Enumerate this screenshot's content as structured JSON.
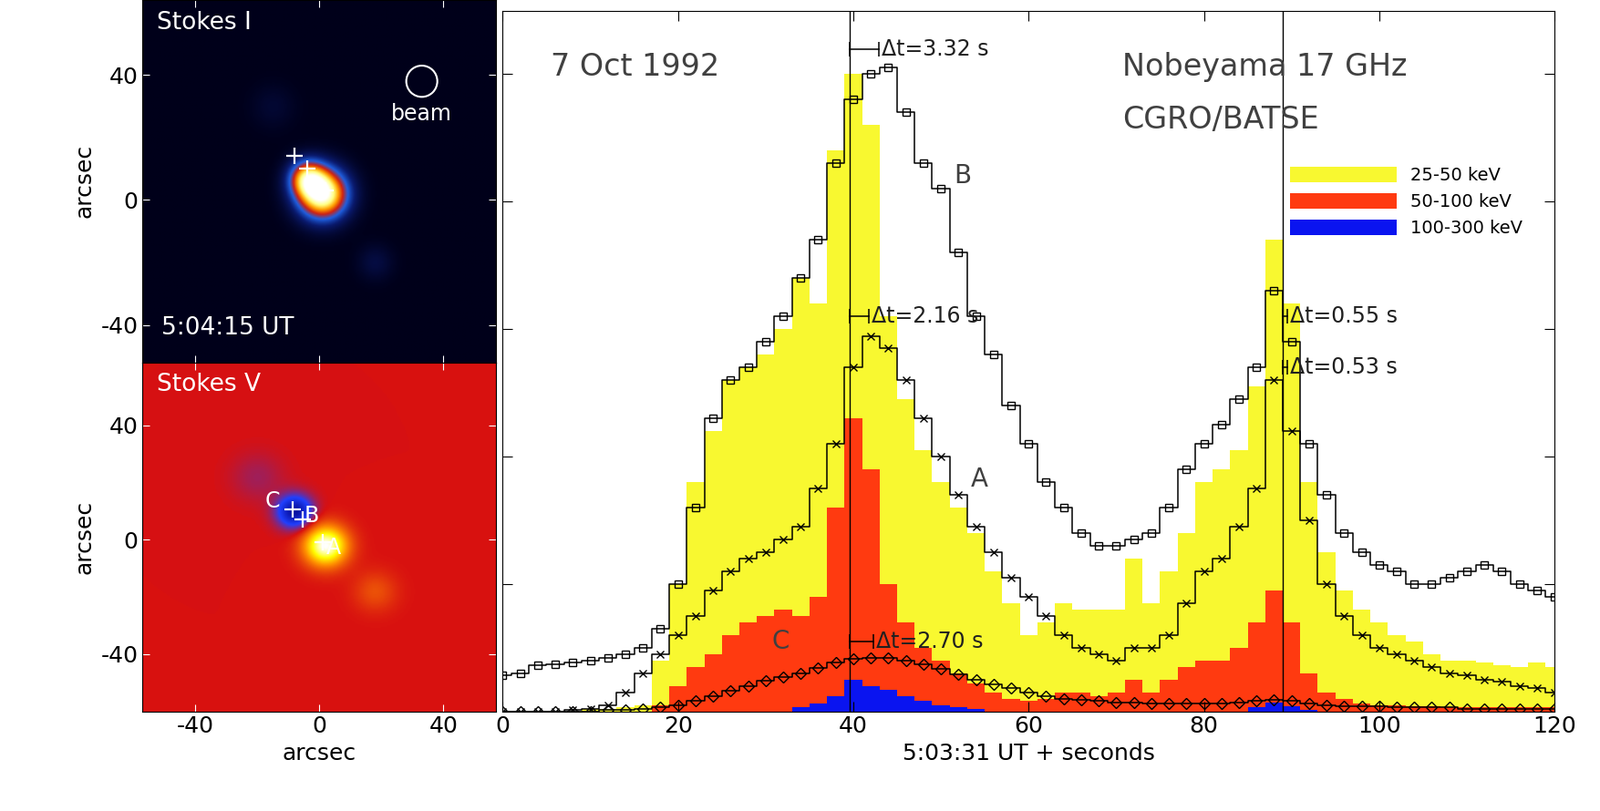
{
  "chart_data": [
    {
      "type": "image",
      "title": "Stokes I",
      "xlim": [
        -57,
        57
      ],
      "ylim": [
        -52,
        64
      ],
      "xticks": [
        -40,
        0,
        40
      ],
      "yticks": [
        -40,
        0,
        40
      ],
      "ylabel": "arcsec",
      "tick_labels": "y",
      "clim": [
        0,
        1
      ],
      "sources": [
        {
          "x": 1,
          "y": 2,
          "sigma": 5.5,
          "peak": 1.0
        },
        {
          "x": -4,
          "y": 7,
          "sigma": 4,
          "peak": 0.6
        },
        {
          "x": 18,
          "y": -20,
          "sigma": 4,
          "peak": 0.08
        },
        {
          "x": -15,
          "y": 30,
          "sigma": 5,
          "peak": 0.05
        }
      ],
      "markers": [
        {
          "x": -8,
          "y": 14
        },
        {
          "x": -4,
          "y": 10
        },
        {
          "x": 2,
          "y": 3
        }
      ],
      "beam": {
        "text": "beam",
        "x": 33,
        "y": 38,
        "radius": 5
      },
      "annotations": [
        {
          "text": "5:04:15 UT",
          "x": -51,
          "y": -41
        }
      ]
    },
    {
      "type": "image",
      "title": "Stokes V",
      "xlim": [
        -57,
        57
      ],
      "ylim": [
        -60,
        62
      ],
      "xticks": [
        -40,
        0,
        40
      ],
      "yticks": [
        -40,
        0,
        40
      ],
      "xlabel": "arcsec",
      "ylabel": "arcsec",
      "clim": [
        -1,
        1
      ],
      "sources": [
        {
          "x": 2,
          "y": -2,
          "sigma": 5,
          "peak": 1.0
        },
        {
          "x": -8,
          "y": 10,
          "sigma": 4,
          "peak": -0.85
        },
        {
          "x": 18,
          "y": -18,
          "sigma": 5,
          "peak": 0.2
        },
        {
          "x": -20,
          "y": 22,
          "sigma": 6,
          "peak": -0.12
        }
      ],
      "markers": [
        {
          "x": -8.5,
          "y": 10.7,
          "label": "C"
        },
        {
          "x": -5.5,
          "y": 7,
          "label": "B"
        },
        {
          "x": 1,
          "y": -1,
          "label": "A"
        }
      ]
    },
    {
      "type": "line",
      "title": "7 Oct 1992",
      "title_x": 5.5,
      "title_y": 5.06,
      "xlabel": "5:03:31 UT + seconds",
      "xlim": [
        0,
        120
      ],
      "ylim": [
        0,
        5.5
      ],
      "xticks": [
        0,
        20,
        40,
        60,
        80,
        100,
        120
      ],
      "yticks": [
        1,
        2,
        3,
        4,
        5
      ],
      "tick_labels": "x",
      "legend": "upper right",
      "annotations": [
        {
          "text": "Nobeyama 17 GHz",
          "x": 70.7,
          "y": 5.06
        },
        {
          "text": "CGRO/BATSE",
          "x": 70.7,
          "y": 4.64
        }
      ],
      "vlines": [
        39.6,
        89.0
      ],
      "delays": [
        {
          "text": "Δt=3.32 s",
          "x": 39.6,
          "y": 5.2,
          "dt": 3.32
        },
        {
          "text": "Δt=2.16 s",
          "x": 39.6,
          "y": 3.1,
          "dt": 2.16
        },
        {
          "text": "Δt=2.70 s",
          "x": 39.6,
          "y": 0.55,
          "dt": 2.7
        },
        {
          "text": "Δt=0.55 s",
          "x": 89.0,
          "y": 3.1,
          "dt": 0.55
        },
        {
          "text": "Δt=0.53 s",
          "x": 89.0,
          "y": 2.7,
          "dt": 0.53
        }
      ],
      "x": [
        0,
        2,
        4,
        6,
        8,
        10,
        12,
        14,
        16,
        18,
        20,
        22,
        24,
        26,
        28,
        30,
        32,
        34,
        36,
        38,
        40,
        42,
        44,
        46,
        48,
        50,
        52,
        54,
        56,
        58,
        60,
        62,
        64,
        66,
        68,
        70,
        72,
        74,
        76,
        78,
        80,
        82,
        84,
        86,
        88,
        90,
        92,
        94,
        96,
        98,
        100,
        102,
        104,
        106,
        108,
        110,
        112,
        114,
        116,
        118,
        120
      ],
      "series": [
        {
          "name": "25-50 keV",
          "type": "area",
          "color": "#f8f830",
          "values": [
            0,
            0,
            0,
            0,
            0,
            0.02,
            0.02,
            0.03,
            0.05,
            0.4,
            1.0,
            1.8,
            2.2,
            2.6,
            2.7,
            2.8,
            3.0,
            3.4,
            3.2,
            4.4,
            5.0,
            4.6,
            3.1,
            2.45,
            2.05,
            1.8,
            1.6,
            1.4,
            1.1,
            0.85,
            0.6,
            0.7,
            0.85,
            0.8,
            0.8,
            0.8,
            1.2,
            0.85,
            1.1,
            1.4,
            1.8,
            1.9,
            2.05,
            2.55,
            3.7,
            3.2,
            1.8,
            1.25,
            0.95,
            0.8,
            0.7,
            0.6,
            0.55,
            0.45,
            0.4,
            0.4,
            0.38,
            0.36,
            0.35,
            0.38,
            0.35
          ]
        },
        {
          "name": "50-100 keV",
          "type": "area",
          "color": "#ff3a10",
          "values": [
            0,
            0,
            0,
            0,
            0,
            0,
            0,
            0,
            0,
            0.05,
            0.2,
            0.35,
            0.45,
            0.6,
            0.7,
            0.75,
            0.8,
            0.75,
            0.9,
            1.6,
            2.3,
            1.9,
            1.0,
            0.7,
            0.5,
            0.4,
            0.3,
            0.22,
            0.15,
            0.1,
            0.08,
            0.1,
            0.15,
            0.15,
            0.12,
            0.15,
            0.25,
            0.15,
            0.25,
            0.35,
            0.4,
            0.4,
            0.5,
            0.7,
            0.95,
            0.7,
            0.3,
            0.15,
            0.1,
            0.06,
            0.05,
            0.05,
            0.04,
            0.04,
            0.03,
            0.03,
            0.03,
            0.03,
            0.03,
            0.03,
            0.03
          ]
        },
        {
          "name": "100-300 keV",
          "type": "area",
          "color": "#0a14f0",
          "values": [
            0,
            0,
            0,
            0,
            0,
            0,
            0,
            0,
            0,
            0,
            0,
            0,
            0,
            0,
            0,
            0,
            0,
            0.03,
            0.06,
            0.12,
            0.25,
            0.2,
            0.17,
            0.12,
            0.08,
            0.05,
            0.03,
            0.02,
            0,
            0,
            0,
            0,
            0,
            0,
            0,
            0,
            0,
            0,
            0,
            0,
            0,
            0,
            0,
            0.03,
            0.07,
            0.04,
            0.01,
            0,
            0,
            0,
            0,
            0,
            0,
            0,
            0,
            0,
            0,
            0,
            0,
            0,
            0
          ]
        },
        {
          "name": "B",
          "type": "line",
          "color": "#000000",
          "marker": "square",
          "label_x": 52.5,
          "label_y": 4.2,
          "values": [
            0.28,
            0.3,
            0.36,
            0.37,
            0.38,
            0.4,
            0.42,
            0.45,
            0.5,
            0.65,
            1.0,
            1.6,
            2.3,
            2.6,
            2.7,
            2.9,
            3.1,
            3.4,
            3.7,
            4.3,
            4.8,
            5.0,
            5.05,
            4.7,
            4.3,
            4.1,
            3.6,
            3.1,
            2.8,
            2.4,
            2.1,
            1.8,
            1.6,
            1.4,
            1.3,
            1.3,
            1.35,
            1.4,
            1.6,
            1.9,
            2.1,
            2.25,
            2.45,
            2.7,
            3.3,
            2.9,
            2.1,
            1.7,
            1.4,
            1.25,
            1.15,
            1.1,
            1.0,
            1.0,
            1.05,
            1.1,
            1.15,
            1.1,
            1.0,
            0.95,
            0.9
          ]
        },
        {
          "name": "A",
          "type": "line",
          "color": "#000000",
          "marker": "x",
          "label_x": 54.4,
          "label_y": 1.82,
          "values": [
            0,
            0,
            0,
            0,
            0.01,
            0.02,
            0.05,
            0.15,
            0.3,
            0.45,
            0.6,
            0.75,
            0.95,
            1.1,
            1.2,
            1.25,
            1.35,
            1.45,
            1.75,
            2.1,
            2.7,
            2.94,
            2.85,
            2.6,
            2.3,
            2.0,
            1.7,
            1.45,
            1.25,
            1.05,
            0.9,
            0.75,
            0.6,
            0.5,
            0.45,
            0.4,
            0.5,
            0.5,
            0.6,
            0.85,
            1.1,
            1.2,
            1.45,
            1.75,
            2.6,
            2.2,
            1.5,
            1.0,
            0.75,
            0.6,
            0.5,
            0.45,
            0.4,
            0.35,
            0.3,
            0.28,
            0.25,
            0.23,
            0.2,
            0.18,
            0.15
          ]
        },
        {
          "name": "C",
          "type": "line",
          "color": "#000000",
          "marker": "diamond",
          "label_x": 31.7,
          "label_y": 0.55,
          "values": [
            0,
            0,
            0,
            0,
            0,
            0,
            0.01,
            0.01,
            0.02,
            0.03,
            0.05,
            0.08,
            0.12,
            0.16,
            0.2,
            0.24,
            0.27,
            0.3,
            0.34,
            0.38,
            0.41,
            0.42,
            0.42,
            0.4,
            0.37,
            0.33,
            0.29,
            0.25,
            0.21,
            0.18,
            0.15,
            0.12,
            0.1,
            0.09,
            0.08,
            0.07,
            0.07,
            0.06,
            0.06,
            0.06,
            0.06,
            0.06,
            0.07,
            0.08,
            0.09,
            0.08,
            0.06,
            0.05,
            0.04,
            0.04,
            0.04,
            0.03,
            0.03,
            0.03,
            0.03,
            0.02,
            0.02,
            0.02,
            0.02,
            0.02,
            0.02
          ]
        }
      ]
    }
  ]
}
